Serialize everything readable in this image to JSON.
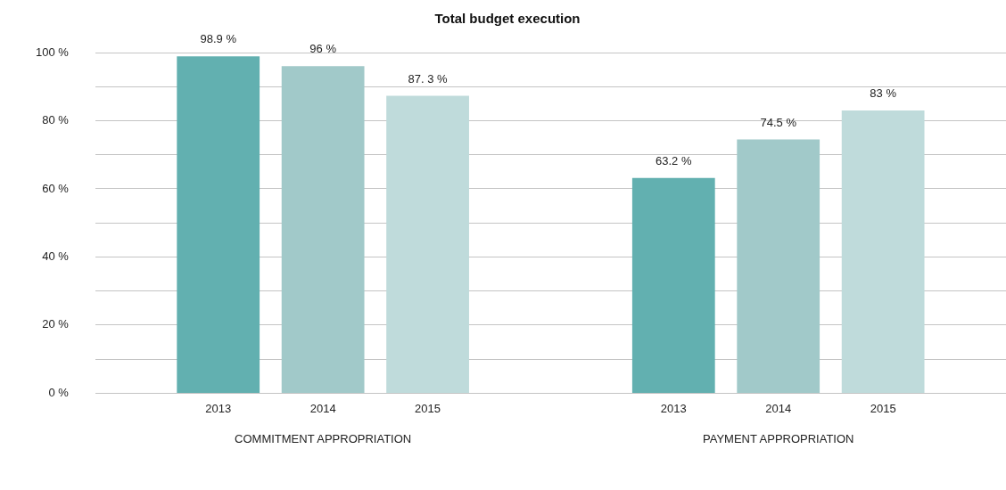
{
  "chart_data": {
    "type": "bar",
    "title": "Total budget execution",
    "categories": [
      "COMMITMENT APPROPRIATION",
      "PAYMENT APPROPRIATION"
    ],
    "series": [
      {
        "name": "2013",
        "color": "#62b0b0",
        "values": [
          98.9,
          63.2
        ],
        "value_labels": [
          "98.9 %",
          "63.2 %"
        ]
      },
      {
        "name": "2014",
        "color": "#a1c9c9",
        "values": [
          96,
          74.5
        ],
        "value_labels": [
          "96 %",
          "74.5 %"
        ]
      },
      {
        "name": "2015",
        "color": "#bfdbdb",
        "values": [
          87.3,
          83
        ],
        "value_labels": [
          "87. 3 %",
          "83 %"
        ]
      }
    ],
    "ylim": [
      0,
      100
    ],
    "yticks": [
      {
        "value": 0,
        "label": "0 %"
      },
      {
        "value": 10,
        "label": null
      },
      {
        "value": 20,
        "label": "20 %"
      },
      {
        "value": 30,
        "label": null
      },
      {
        "value": 40,
        "label": "40 %"
      },
      {
        "value": 50,
        "label": null
      },
      {
        "value": 60,
        "label": "60 %"
      },
      {
        "value": 70,
        "label": null
      },
      {
        "value": 80,
        "label": "80 %"
      },
      {
        "value": 90,
        "label": null
      },
      {
        "value": 100,
        "label": "100 %"
      }
    ],
    "grid": "y",
    "legend": false
  }
}
